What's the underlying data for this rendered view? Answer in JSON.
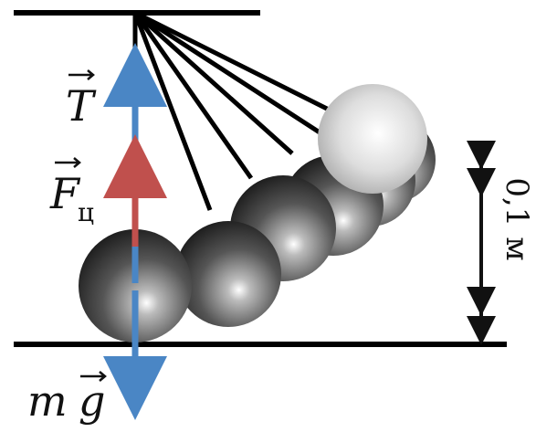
{
  "labels": {
    "tension": "T",
    "centripetal_force": "F",
    "centripetal_subscript": "ц",
    "mass": "m",
    "gravity": "g",
    "height": "0,1 м"
  }
}
